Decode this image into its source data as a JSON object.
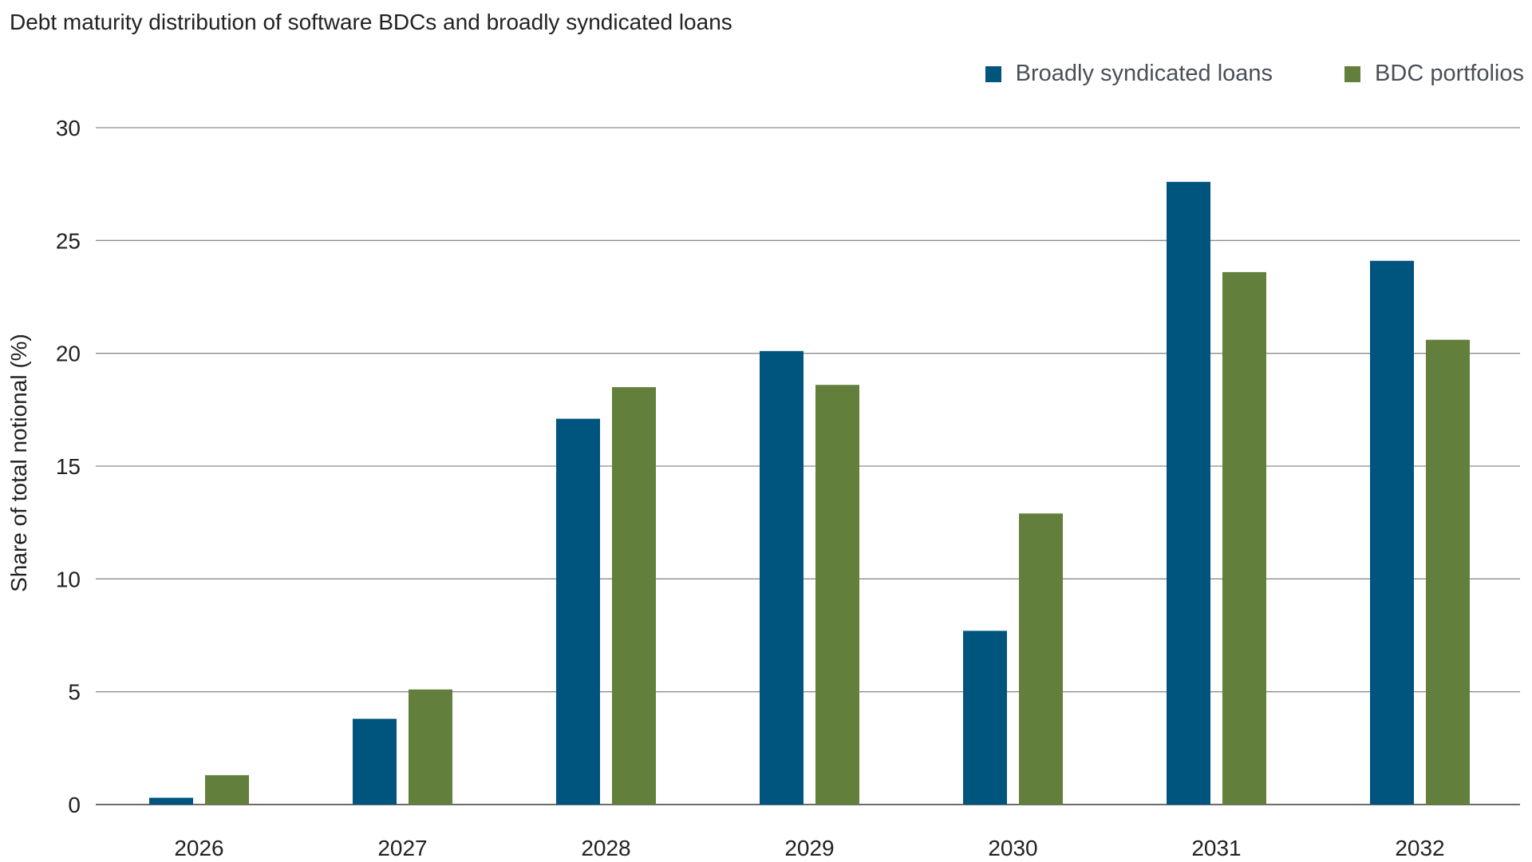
{
  "chart_data": {
    "type": "bar",
    "title": "Debt maturity distribution of software BDCs and broadly syndicated loans",
    "xlabel": "",
    "ylabel": "Share of total notional (%)",
    "categories": [
      "2026",
      "2027",
      "2028",
      "2029",
      "2030",
      "2031",
      "2032"
    ],
    "series": [
      {
        "name": "Broadly syndicated loans",
        "color": "#00557f",
        "values": [
          0.3,
          3.8,
          17.1,
          20.1,
          7.7,
          27.6,
          24.1
        ]
      },
      {
        "name": "BDC portfolios",
        "color": "#62803c",
        "values": [
          1.3,
          5.1,
          18.5,
          18.6,
          12.9,
          23.6,
          20.6
        ]
      }
    ],
    "ylim": [
      0,
      30
    ],
    "yticks": [
      "0",
      "5",
      "10",
      "15",
      "20",
      "25",
      "30"
    ],
    "grid": true,
    "legend_position": "top-right"
  }
}
